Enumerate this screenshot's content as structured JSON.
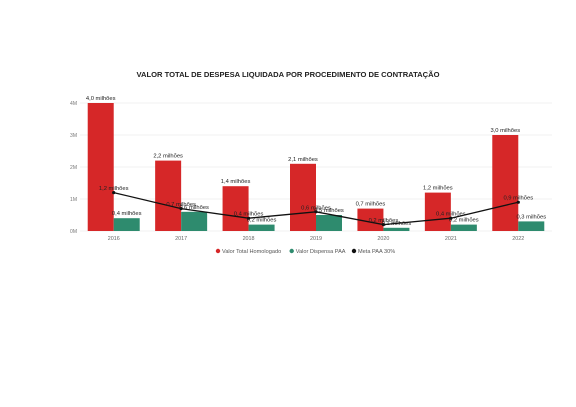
{
  "chart_data": {
    "type": "bar",
    "title": "VALOR TOTAL DE DESPESA LIQUIDADA POR PROCEDIMENTO DE CONTRATAÇÃO",
    "categories": [
      "2016",
      "2017",
      "2018",
      "2019",
      "2020",
      "2021",
      "2022"
    ],
    "ylim": [
      0,
      4
    ],
    "y_ticks": [
      {
        "value": 0,
        "label": "0M"
      },
      {
        "value": 1,
        "label": "1M"
      },
      {
        "value": 2,
        "label": "2M"
      },
      {
        "value": 3,
        "label": "3M"
      },
      {
        "value": 4,
        "label": "4M"
      }
    ],
    "grid": true,
    "legend_position": "bottom-center",
    "series": [
      {
        "name": "Valor Total Homologado",
        "kind": "bar",
        "color": "#d62728",
        "values": [
          4.0,
          2.2,
          1.4,
          2.1,
          0.7,
          1.2,
          3.0
        ],
        "labels": [
          "4,0 milhões",
          "2,2 milhões",
          "1,4 milhões",
          "2,1 milhões",
          "0,7 milhões",
          "1,2 milhões",
          "3,0 milhões"
        ]
      },
      {
        "name": "Valor Dispensa PAA",
        "kind": "bar",
        "color": "#2e8b6e",
        "values": [
          0.4,
          0.6,
          0.2,
          0.5,
          0.1,
          0.2,
          0.3
        ],
        "labels": [
          "0,4 milhões",
          "0,6 milhões",
          "0,2 milhões",
          "0,5 milhões",
          "0,1 milhões",
          "0,2 milhões",
          "0,3 milhões"
        ]
      },
      {
        "name": "Meta PAA 30%",
        "kind": "line",
        "color": "#111111",
        "values": [
          1.2,
          0.7,
          0.4,
          0.6,
          0.2,
          0.4,
          0.9
        ],
        "labels": [
          "1,2 milhões",
          "0,7 milhões",
          "0,4 milhões",
          "0,6 milhões",
          "0,2 milhões",
          "0,4 milhões",
          "0,9 milhões"
        ]
      }
    ]
  }
}
